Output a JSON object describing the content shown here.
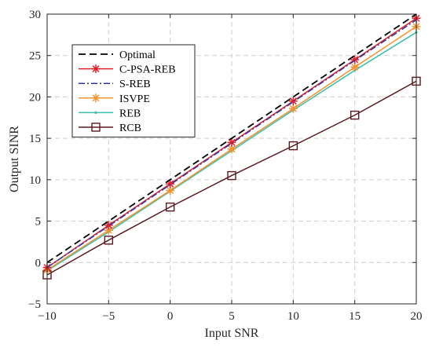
{
  "chart_data": {
    "type": "line",
    "xlabel": "Input SNR",
    "ylabel": "Output SINR",
    "xlim": [
      -10,
      20
    ],
    "ylim": [
      -5,
      30
    ],
    "xticks": [
      -10,
      -5,
      0,
      5,
      10,
      15,
      20
    ],
    "yticks": [
      -5,
      0,
      5,
      10,
      15,
      20,
      25,
      30
    ],
    "xtick_labels": [
      "−10",
      "−5",
      "0",
      "5",
      "10",
      "15",
      "20"
    ],
    "ytick_labels": [
      "−5",
      "0",
      "5",
      "10",
      "15",
      "20",
      "25",
      "30"
    ],
    "grid": true,
    "legend_placement": "upper-left",
    "x": [
      -10,
      -5,
      0,
      5,
      10,
      15,
      20
    ],
    "series": [
      {
        "name": "Optimal",
        "values": [
          0.0,
          5.0,
          10.0,
          15.0,
          20.0,
          25.0,
          30.0
        ],
        "color": "#000000",
        "dash": "dashed",
        "marker": "none"
      },
      {
        "name": "C-PSA-REB",
        "values": [
          -0.6,
          4.5,
          9.5,
          14.5,
          19.5,
          24.5,
          29.5
        ],
        "color": "#e3202a",
        "dash": "solid",
        "marker": "asterisk"
      },
      {
        "name": "S-REB",
        "values": [
          -0.6,
          4.4,
          9.4,
          14.4,
          19.4,
          24.4,
          29.3
        ],
        "color": "#2b3aa5",
        "dash": "dashdot",
        "marker": "none"
      },
      {
        "name": "ISVPE",
        "values": [
          -0.9,
          3.9,
          8.7,
          13.7,
          18.6,
          23.6,
          28.5
        ],
        "color": "#f5922f",
        "dash": "solid",
        "marker": "asterisk"
      },
      {
        "name": "REB",
        "values": [
          -1.0,
          3.7,
          8.6,
          13.5,
          18.4,
          23.2,
          27.8
        ],
        "color": "#3bbfad",
        "dash": "solid",
        "marker": "dot"
      },
      {
        "name": "RCB",
        "values": [
          -1.5,
          2.7,
          6.7,
          10.5,
          14.1,
          17.8,
          21.9
        ],
        "color": "#5a1a1f",
        "dash": "solid",
        "marker": "square"
      }
    ]
  }
}
